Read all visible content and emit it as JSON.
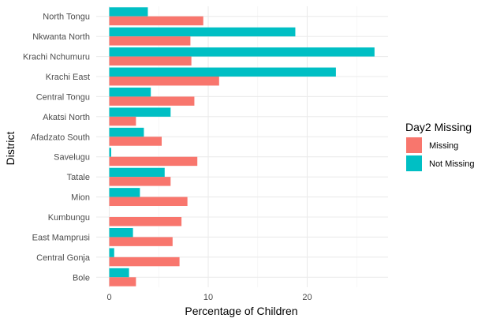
{
  "chart_data": {
    "type": "bar",
    "orientation": "horizontal",
    "xlabel": "Percentage of Children",
    "ylabel": "District",
    "xlim": [
      0,
      28
    ],
    "x_ticks": [
      0,
      10,
      20
    ],
    "grid": true,
    "legend": {
      "title": "Day2 Missing",
      "placement": "right",
      "entries": [
        "Missing",
        "Not Missing"
      ]
    },
    "categories": [
      "North Tongu",
      "Nkwanta North",
      "Krachi Nchumuru",
      "Krachi East",
      "Central Tongu",
      "Akatsi North",
      "Afadzato South",
      "Savelugu",
      "Tatale",
      "Mion",
      "Kumbungu",
      "East Mamprusi",
      "Central Gonja",
      "Bole"
    ],
    "series": [
      {
        "name": "Missing",
        "color": "#F8766D",
        "values": [
          9.5,
          8.2,
          8.3,
          11.1,
          8.6,
          2.7,
          5.3,
          8.9,
          6.2,
          7.9,
          7.3,
          6.4,
          7.1,
          2.7
        ]
      },
      {
        "name": "Not Missing",
        "color": "#00BFC4",
        "values": [
          3.9,
          18.8,
          26.8,
          22.9,
          4.2,
          6.2,
          3.5,
          0.2,
          5.6,
          3.1,
          0.0,
          2.4,
          0.5,
          2.0
        ]
      }
    ]
  }
}
